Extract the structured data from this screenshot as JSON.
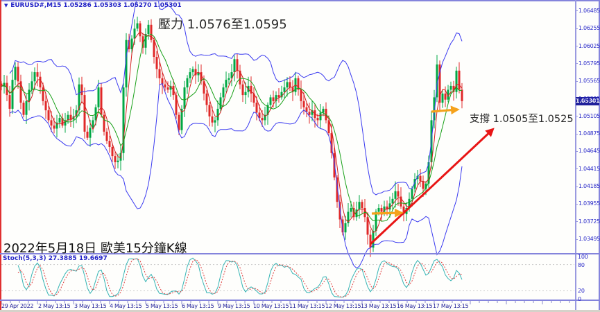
{
  "header": {
    "dropdown_icon": "symbol-dropdown",
    "symbol_line": "EURUSD#,M15  1.05286 1.05303 1.05270 1.05301"
  },
  "annotations": {
    "resistance": "壓力 1.0576至1.0595",
    "support": "支撐 1.0505至1.0525",
    "date_note": "2022年5月18日 歐美15分鐘K線"
  },
  "indicator": {
    "label": "Stoch(5,3,3) 27.3885 19.6697",
    "levels": [
      "100",
      "80",
      "20",
      "0"
    ],
    "level_lines": [
      80,
      20
    ]
  },
  "price_axis": {
    "ticks": [
      "1.06485",
      "1.06255",
      "1.06025",
      "1.05795",
      "1.05565",
      "1.05335",
      "1.05105",
      "1.04875",
      "1.04645",
      "1.04415",
      "1.04185",
      "1.03955",
      "1.03725",
      "1.03495"
    ],
    "current": "1.05301"
  },
  "time_axis": {
    "labels": [
      "29 Apr 2022",
      "2 May 13:15",
      "3 May 13:15",
      "4 May 13:15",
      "5 May 13:15",
      "6 May 13:15",
      "9 May 13:15",
      "10 May 13:15",
      "11 May 13:15",
      "12 May 13:15",
      "13 May 13:15",
      "16 May 13:15",
      "17 May 13:15"
    ]
  },
  "chart_data": {
    "type": "candlestick",
    "symbol": "EURUSD#",
    "timeframe": "M15",
    "title": "EURUSD#,M15",
    "ohlc_header": {
      "open": "1.05286",
      "high": "1.05303",
      "low": "1.05270",
      "close": "1.05301"
    },
    "price_range": [
      1.033,
      1.0658
    ],
    "resistance_zone": [
      1.0576,
      1.0595
    ],
    "support_zone": [
      1.0505,
      1.0525
    ],
    "current_price": 1.05301,
    "overlays": [
      "bollinger-bands",
      "ma-fast-red",
      "ma-slow-green"
    ],
    "closes": [
      1.0549,
      1.0554,
      1.0538,
      1.052,
      1.0558,
      1.0575,
      1.0556,
      1.0528,
      1.0512,
      1.053,
      1.0545,
      1.0556,
      1.0568,
      1.0562,
      1.0548,
      1.053,
      1.0518,
      1.0505,
      1.0498,
      1.0494,
      1.0502,
      1.0508,
      1.0498,
      1.0505,
      1.0512,
      1.0506,
      1.051,
      1.0518,
      1.0552,
      1.0538,
      1.049,
      1.0482,
      1.0495,
      1.0505,
      1.0522,
      1.0548,
      1.0512,
      1.049,
      1.0478,
      1.047,
      1.0458,
      1.045,
      1.0452,
      1.0462,
      1.0548,
      1.061,
      1.0598,
      1.0612,
      1.0625,
      1.0632,
      1.0615,
      1.06,
      1.0618,
      1.063,
      1.061,
      1.0588,
      1.0572,
      1.056,
      1.0552,
      1.0548,
      1.0545,
      1.055,
      1.0538,
      1.0512,
      1.0492,
      1.052,
      1.0548,
      1.056,
      1.0568,
      1.0572,
      1.0564,
      1.0568,
      1.0556,
      1.054,
      1.0525,
      1.051,
      1.0502,
      1.0505,
      1.052,
      1.0535,
      1.0548,
      1.0558,
      1.056,
      1.0568,
      1.0585,
      1.057,
      1.0552,
      1.0538,
      1.0542,
      1.055,
      1.054,
      1.0528,
      1.0515,
      1.0508,
      1.0505,
      1.0512,
      1.0525,
      1.0535,
      1.053,
      1.0538,
      1.0535,
      1.0542,
      1.0548,
      1.0555,
      1.0548,
      1.0542,
      1.056,
      1.0545,
      1.053,
      1.0522,
      1.0516,
      1.0512,
      1.0518,
      1.0508,
      1.0505,
      1.0515,
      1.052,
      1.0505,
      1.0488,
      1.0462,
      1.043,
      1.0398,
      1.0375,
      1.0358,
      1.037,
      1.0385,
      1.039,
      1.0378,
      1.0388,
      1.0398,
      1.039,
      1.0378,
      1.0355,
      1.0338,
      1.036,
      1.0385,
      1.039,
      1.0385,
      1.0392,
      1.0388,
      1.0396,
      1.0402,
      1.0412,
      1.0405,
      1.0392,
      1.0382,
      1.039,
      1.0402,
      1.0415,
      1.0428,
      1.0432,
      1.0425,
      1.0415,
      1.0422,
      1.045,
      1.0505,
      1.0535,
      1.0578,
      1.0528,
      1.054,
      1.0532,
      1.0545,
      1.055,
      1.0542,
      1.057,
      1.0545,
      1.053
    ],
    "sub_chart": {
      "type": "line",
      "name": "Stochastic(5,3,3)",
      "range": [
        0,
        100
      ],
      "last_k": 27.3885,
      "last_d": 19.6697
    }
  },
  "colors": {
    "band": "#3a3af0",
    "up_candle": "#00a844",
    "down_candle": "#e02828",
    "ma_fast": "#d42020",
    "ma_slow": "#18a018",
    "stoch_k": "#35b4b4",
    "stoch_d": "#e04040",
    "axis_text": "#2828c8",
    "price_box_bg": "#20209a",
    "trend_arrow": "#e81515",
    "hint_arrow": "#f5a21c",
    "frame": "#8484dc"
  }
}
